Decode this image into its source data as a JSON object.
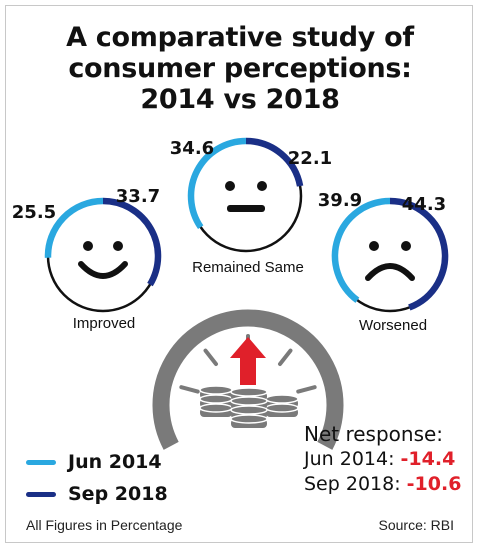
{
  "title_lines": [
    "A comparative study of",
    "consumer perceptions:",
    "2014 vs 2018"
  ],
  "colors": {
    "jun_2014": "#2aa8e0",
    "sep_2018": "#1a2f86",
    "ring_base": "#111111",
    "negative": "#e0202a",
    "gauge": "#7a7a7a",
    "arrow": "#e0202a"
  },
  "chart_data": {
    "type": "ring",
    "categories": [
      "Improved",
      "Remained Same",
      "Worsened"
    ],
    "series": [
      {
        "name": "Jun 2014",
        "values": [
          25.5,
          34.6,
          39.9
        ]
      },
      {
        "name": "Sep 2018",
        "values": [
          33.7,
          22.1,
          44.3
        ]
      }
    ],
    "value_labels": {
      "jun_2014": [
        "25.5",
        "34.6",
        "39.9"
      ],
      "sep_2018": [
        "33.7",
        "22.1",
        "44.3"
      ]
    },
    "faces": [
      "smile-icon",
      "neutral-face-icon",
      "frown-icon"
    ]
  },
  "legend": [
    {
      "label": "Jun 2014",
      "color": "#2aa8e0"
    },
    {
      "label": "Sep 2018",
      "color": "#1a2f86"
    }
  ],
  "net_response": {
    "heading": "Net response:",
    "rows": [
      {
        "label": "Jun 2014:",
        "value": "-14.4"
      },
      {
        "label": "Sep 2018:",
        "value": "-10.6"
      }
    ]
  },
  "footer": {
    "note": "All Figures in Percentage",
    "source": "Source: RBI"
  }
}
